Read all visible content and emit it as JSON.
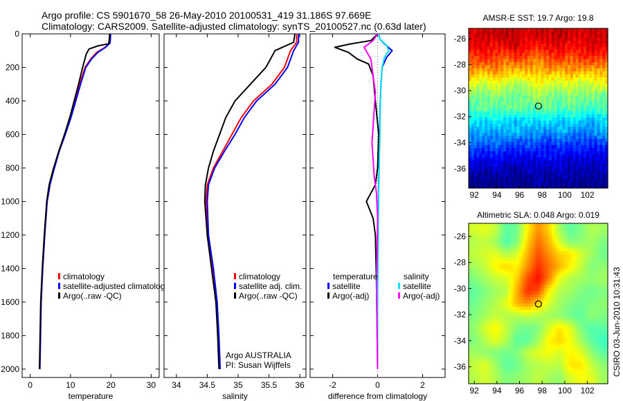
{
  "title": {
    "line1": "Argo profile: CS 5901670_58 26-May-2010 20100531_419 31.186S 97.669E",
    "line2": "Climatology: CARS2009. Satellite-adjusted climatology: synTS_20100527.nc (0.63d later)"
  },
  "credit": {
    "argo": "Argo AUSTRALIA",
    "pi": "PI: Susan Wijffels"
  },
  "stamp": "CSIRO 03-Jun-2010 10:31:43",
  "colors": {
    "climatology": "#ff0000",
    "satellite": "#0000ff",
    "argo": "#000000",
    "sal_satellite": "#00e0f0",
    "sal_argo": "#ff00ff"
  },
  "chart_data": [
    {
      "type": "line",
      "id": "temperature",
      "xlabel": "temperature",
      "ylabel": "",
      "xlim": [
        -2,
        32
      ],
      "ylim": [
        2050,
        0
      ],
      "xticks": [
        0,
        10,
        20,
        30
      ],
      "xtick_labels": [
        "0",
        "10",
        "20",
        "30"
      ],
      "yticks": [
        0,
        200,
        400,
        600,
        800,
        1000,
        1200,
        1400,
        1600,
        1800,
        2000
      ],
      "ytick_labels": [
        "0",
        "200",
        "400",
        "600",
        "800",
        "1000",
        "1200",
        "1400",
        "1600",
        "1800",
        "2000"
      ],
      "legend": [
        "climatology",
        "satellite-adjusted climatology",
        "Argo(..raw -QC)"
      ],
      "legend_labels": [
        "climatology",
        "satellite-adjusted climatolog",
        "Argo(..raw -QC)"
      ],
      "series": [
        {
          "name": "climatology",
          "color": "#ff0000",
          "width": 2,
          "x": [
            19.7,
            19.7,
            19.6,
            18.6,
            16.5,
            15.0,
            13.6,
            12.3,
            11.2,
            10.0,
            8.6,
            7.1,
            5.9,
            4.9,
            4.2,
            3.6,
            3.1,
            2.7,
            2.4
          ],
          "y": [
            0,
            30,
            55,
            80,
            110,
            150,
            200,
            300,
            400,
            500,
            600,
            700,
            800,
            900,
            1000,
            1200,
            1400,
            1600,
            2000
          ]
        },
        {
          "name": "satellite-adjusted climatology",
          "color": "#0000ff",
          "width": 2,
          "x": [
            19.9,
            19.9,
            19.8,
            18.7,
            16.8,
            15.2,
            13.8,
            12.5,
            11.3,
            10.1,
            8.7,
            7.2,
            6.0,
            4.9,
            4.2,
            3.6,
            3.1,
            2.7,
            2.4
          ],
          "y": [
            0,
            30,
            55,
            80,
            110,
            150,
            200,
            300,
            400,
            500,
            600,
            700,
            800,
            900,
            1000,
            1200,
            1400,
            1600,
            2000
          ]
        },
        {
          "name": "Argo(..raw -QC)",
          "color": "#000000",
          "width": 2,
          "x": [
            19.7,
            19.6,
            19.4,
            17.0,
            14.6,
            13.9,
            13.0,
            12.0,
            10.9,
            9.8,
            8.5,
            7.1,
            5.8,
            4.7,
            4.1,
            3.5,
            3.0,
            2.6,
            2.3
          ],
          "y": [
            0,
            40,
            60,
            70,
            90,
            120,
            200,
            300,
            400,
            500,
            600,
            700,
            800,
            900,
            1000,
            1200,
            1400,
            1600,
            2000
          ]
        }
      ]
    },
    {
      "type": "line",
      "id": "salinity",
      "xlabel": "salinity",
      "ylabel": "",
      "xlim": [
        33.8,
        36.1
      ],
      "ylim": [
        2050,
        0
      ],
      "xticks": [
        34,
        34.5,
        35,
        35.5,
        36
      ],
      "xtick_labels": [
        "34",
        "34.5",
        "35",
        "35.5",
        "36"
      ],
      "legend": [
        "climatology",
        "satellite adj. clim.",
        "Argo(..raw -QC)"
      ],
      "series": [
        {
          "name": "climatology",
          "color": "#ff0000",
          "width": 2,
          "x": [
            35.95,
            35.95,
            35.85,
            35.75,
            35.55,
            35.25,
            35.05,
            34.9,
            34.75,
            34.6,
            34.5,
            34.48,
            34.5,
            34.58,
            34.65,
            34.68,
            34.7
          ],
          "y": [
            0,
            50,
            100,
            200,
            300,
            400,
            500,
            600,
            700,
            800,
            900,
            1000,
            1200,
            1400,
            1600,
            1800,
            2000
          ]
        },
        {
          "name": "satellite adj. clim.",
          "color": "#0000ff",
          "width": 2,
          "x": [
            35.98,
            35.98,
            35.9,
            35.8,
            35.6,
            35.3,
            35.1,
            34.95,
            34.78,
            34.62,
            34.52,
            34.5,
            34.52,
            34.6,
            34.66,
            34.69,
            34.71
          ],
          "y": [
            0,
            50,
            100,
            200,
            300,
            400,
            500,
            600,
            700,
            800,
            900,
            1000,
            1200,
            1400,
            1600,
            1800,
            2000
          ]
        },
        {
          "name": "Argo(..raw -QC)",
          "color": "#000000",
          "width": 2,
          "x": [
            35.92,
            35.9,
            35.6,
            35.45,
            35.2,
            34.95,
            34.8,
            34.7,
            34.6,
            34.52,
            34.47,
            34.46,
            34.5,
            34.57,
            34.64,
            34.67,
            34.69
          ],
          "y": [
            0,
            50,
            100,
            200,
            300,
            400,
            500,
            600,
            700,
            800,
            900,
            1000,
            1200,
            1400,
            1600,
            1800,
            2000
          ]
        }
      ]
    },
    {
      "type": "line",
      "id": "difference",
      "xlabel": "difference from climatology",
      "ylabel": "",
      "xlim": [
        -3,
        3
      ],
      "ylim": [
        2050,
        0
      ],
      "xticks": [
        -2,
        0,
        2
      ],
      "xtick_labels": [
        "-2",
        "0",
        "2"
      ],
      "legend_temperature_title": "temperature",
      "legend_salinity_title": "salinity",
      "legend": [
        "satellite",
        "Argo(-adj)",
        "satellite",
        "Argo(-adj)"
      ],
      "series": [
        {
          "name": "temperature satellite",
          "color": "#0000ff",
          "width": 2,
          "x": [
            0.05,
            0.1,
            0.3,
            0.65,
            0.4,
            0.2,
            0.15,
            0.12,
            0.1,
            0.08,
            0.05,
            0.03,
            0.02,
            0.0,
            0.0,
            0.0
          ],
          "y": [
            0,
            30,
            60,
            100,
            140,
            200,
            300,
            400,
            500,
            700,
            900,
            1100,
            1300,
            1500,
            1800,
            2000
          ]
        },
        {
          "name": "temperature Argo(-adj)",
          "color": "#000000",
          "width": 2,
          "x": [
            0.0,
            -0.3,
            -1.2,
            -1.9,
            -1.3,
            -0.9,
            -0.4,
            -0.2,
            -0.1,
            0.05,
            0.0,
            -0.1,
            -0.3,
            -0.5,
            -0.2,
            -0.1,
            -0.05,
            0.0
          ],
          "y": [
            0,
            40,
            60,
            80,
            110,
            150,
            180,
            250,
            400,
            600,
            800,
            900,
            950,
            1000,
            1100,
            1200,
            1500,
            2000
          ]
        },
        {
          "name": "salinity satellite",
          "color": "#00e0f0",
          "width": 2,
          "x": [
            0.05,
            0.1,
            0.4,
            0.5,
            0.3,
            0.2,
            0.15,
            0.12,
            0.1,
            0.06,
            0.04,
            0.02,
            0.0,
            0.0
          ],
          "y": [
            0,
            30,
            70,
            100,
            140,
            200,
            300,
            400,
            600,
            800,
            1000,
            1300,
            1600,
            2000
          ]
        },
        {
          "name": "salinity Argo(-adj)",
          "color": "#ff00ff",
          "width": 2,
          "x": [
            0.0,
            -0.2,
            -0.6,
            -0.3,
            -0.2,
            -0.1,
            -0.15,
            -0.2,
            -0.25,
            -0.2,
            -0.15,
            -0.05,
            0.0,
            -0.05,
            0.0
          ],
          "y": [
            0,
            40,
            80,
            150,
            250,
            350,
            450,
            550,
            650,
            750,
            850,
            950,
            1100,
            1500,
            2000
          ]
        }
      ]
    },
    {
      "type": "heatmap",
      "id": "sst",
      "title": "AMSR-E SST: 19.7 Argo: 19.8",
      "xlim": [
        91.5,
        103.8
      ],
      "ylim": [
        -37.5,
        -25.2
      ],
      "xticks": [
        92,
        94,
        96,
        98,
        100,
        102
      ],
      "xtick_labels": [
        "92",
        "94",
        "96",
        "98",
        "100",
        "102"
      ],
      "yticks": [
        -26,
        -28,
        -30,
        -32,
        -34,
        -36
      ],
      "ytick_labels": [
        "-26",
        "-28",
        "-30",
        "-32",
        "-34",
        "-36"
      ],
      "marker": {
        "lon": 97.669,
        "lat": -31.186
      },
      "value_range": [
        15,
        23
      ],
      "field": [
        [
          22.3,
          22.5,
          22.4,
          22.6,
          22.4,
          22.2,
          22.5,
          22.3,
          22.6,
          22.4,
          22.2,
          22.5,
          22.4
        ],
        [
          22.0,
          22.2,
          21.9,
          22.1,
          22.3,
          22.0,
          21.8,
          22.1,
          22.2,
          21.9,
          22.0,
          22.3,
          22.1
        ],
        [
          21.4,
          21.7,
          21.5,
          21.2,
          21.6,
          21.3,
          21.0,
          21.4,
          21.6,
          21.2,
          21.5,
          21.7,
          21.4
        ],
        [
          20.8,
          20.5,
          20.9,
          20.6,
          20.3,
          20.7,
          20.4,
          20.8,
          20.5,
          20.9,
          20.6,
          20.4,
          20.7
        ],
        [
          19.8,
          19.4,
          19.9,
          19.6,
          19.3,
          19.5,
          19.9,
          19.7,
          19.5,
          19.8,
          19.4,
          19.6,
          19.9
        ],
        [
          19.0,
          18.8,
          19.3,
          18.9,
          18.7,
          19.1,
          19.4,
          19.0,
          18.8,
          19.2,
          18.9,
          19.1,
          18.8
        ],
        [
          18.6,
          18.9,
          18.5,
          18.8,
          19.0,
          18.6,
          18.7,
          18.9,
          18.5,
          18.8,
          18.6,
          18.4,
          18.7
        ],
        [
          18.0,
          17.6,
          18.1,
          17.8,
          17.4,
          17.9,
          17.7,
          18.0,
          17.5,
          17.9,
          17.7,
          17.3,
          17.8
        ],
        [
          17.2,
          17.5,
          17.0,
          17.4,
          17.6,
          17.1,
          17.3,
          16.9,
          17.4,
          17.2,
          16.8,
          17.1,
          17.3
        ],
        [
          16.8,
          16.5,
          16.9,
          16.6,
          16.3,
          16.7,
          16.4,
          16.2,
          16.6,
          16.3,
          16.5,
          16.2,
          16.4
        ],
        [
          16.2,
          15.9,
          16.1,
          15.8,
          16.0,
          15.7,
          15.9,
          16.1,
          15.8,
          15.6,
          15.9,
          15.7,
          15.8
        ],
        [
          15.5,
          15.3,
          15.6,
          15.4,
          15.2,
          15.6,
          15.5,
          15.3,
          15.7,
          15.4,
          15.5,
          15.3,
          15.6
        ],
        [
          15.0,
          15.2,
          14.9,
          15.3,
          15.1,
          15.0,
          15.4,
          15.2,
          15.1,
          15.3,
          15.0,
          15.2,
          15.1
        ]
      ]
    },
    {
      "type": "heatmap",
      "id": "sla",
      "title": "Altimetric SLA: 0.048 Argo: 0.019",
      "xlim": [
        91.5,
        103.8
      ],
      "ylim": [
        -37.3,
        -25.0
      ],
      "xticks": [
        92,
        94,
        96,
        98,
        100,
        102
      ],
      "xtick_labels": [
        "92",
        "94",
        "96",
        "98",
        "100",
        "102"
      ],
      "yticks": [
        -26,
        -28,
        -30,
        -32,
        -34,
        -36
      ],
      "ytick_labels": [
        "-26",
        "-28",
        "-30",
        "-32",
        "-34",
        "-36"
      ],
      "marker": {
        "lon": 97.669,
        "lat": -31.186
      },
      "value_range": [
        -0.3,
        0.3
      ],
      "field": [
        [
          0.05,
          0.06,
          0.04,
          -0.02,
          -0.01,
          0.08,
          0.14,
          0.1,
          0.02,
          -0.02,
          0.0,
          0.03,
          0.02
        ],
        [
          0.03,
          0.04,
          0.02,
          -0.03,
          0.0,
          0.1,
          0.16,
          0.12,
          0.05,
          0.0,
          0.01,
          0.02,
          0.0
        ],
        [
          0.04,
          0.05,
          0.06,
          0.03,
          0.05,
          0.12,
          0.18,
          0.14,
          0.1,
          0.09,
          0.05,
          0.02,
          -0.01
        ],
        [
          0.02,
          0.04,
          0.08,
          0.1,
          0.08,
          0.14,
          0.2,
          0.16,
          0.12,
          0.08,
          0.04,
          0.0,
          0.01
        ],
        [
          0.0,
          0.02,
          0.04,
          0.05,
          0.1,
          0.18,
          0.22,
          0.15,
          0.06,
          0.03,
          0.02,
          0.01,
          0.02
        ],
        [
          -0.02,
          0.0,
          0.02,
          0.03,
          0.12,
          0.2,
          0.18,
          0.08,
          0.03,
          0.02,
          0.0,
          -0.01,
          0.0
        ],
        [
          -0.01,
          0.01,
          0.03,
          0.06,
          0.12,
          0.14,
          0.1,
          0.05,
          0.02,
          0.0,
          -0.01,
          0.0,
          0.01
        ],
        [
          0.0,
          0.02,
          0.04,
          0.03,
          0.03,
          0.04,
          0.03,
          0.02,
          0.01,
          -0.01,
          -0.02,
          0.01,
          0.0
        ],
        [
          0.01,
          0.05,
          0.08,
          0.04,
          0.0,
          -0.01,
          0.0,
          0.05,
          0.09,
          0.06,
          0.0,
          -0.03,
          -0.02
        ],
        [
          0.0,
          0.03,
          0.06,
          0.03,
          -0.02,
          -0.02,
          0.02,
          0.08,
          0.1,
          0.07,
          0.02,
          -0.02,
          -0.04
        ],
        [
          0.02,
          0.01,
          0.0,
          -0.01,
          0.0,
          0.04,
          0.06,
          0.07,
          0.05,
          0.08,
          0.06,
          0.01,
          -0.02
        ],
        [
          0.04,
          0.06,
          0.02,
          -0.02,
          -0.01,
          0.02,
          0.03,
          0.04,
          0.03,
          0.09,
          0.09,
          0.04,
          0.01
        ],
        [
          0.03,
          0.05,
          0.03,
          0.0,
          0.01,
          0.02,
          0.04,
          0.02,
          0.01,
          0.05,
          0.07,
          0.06,
          0.02
        ]
      ]
    }
  ]
}
